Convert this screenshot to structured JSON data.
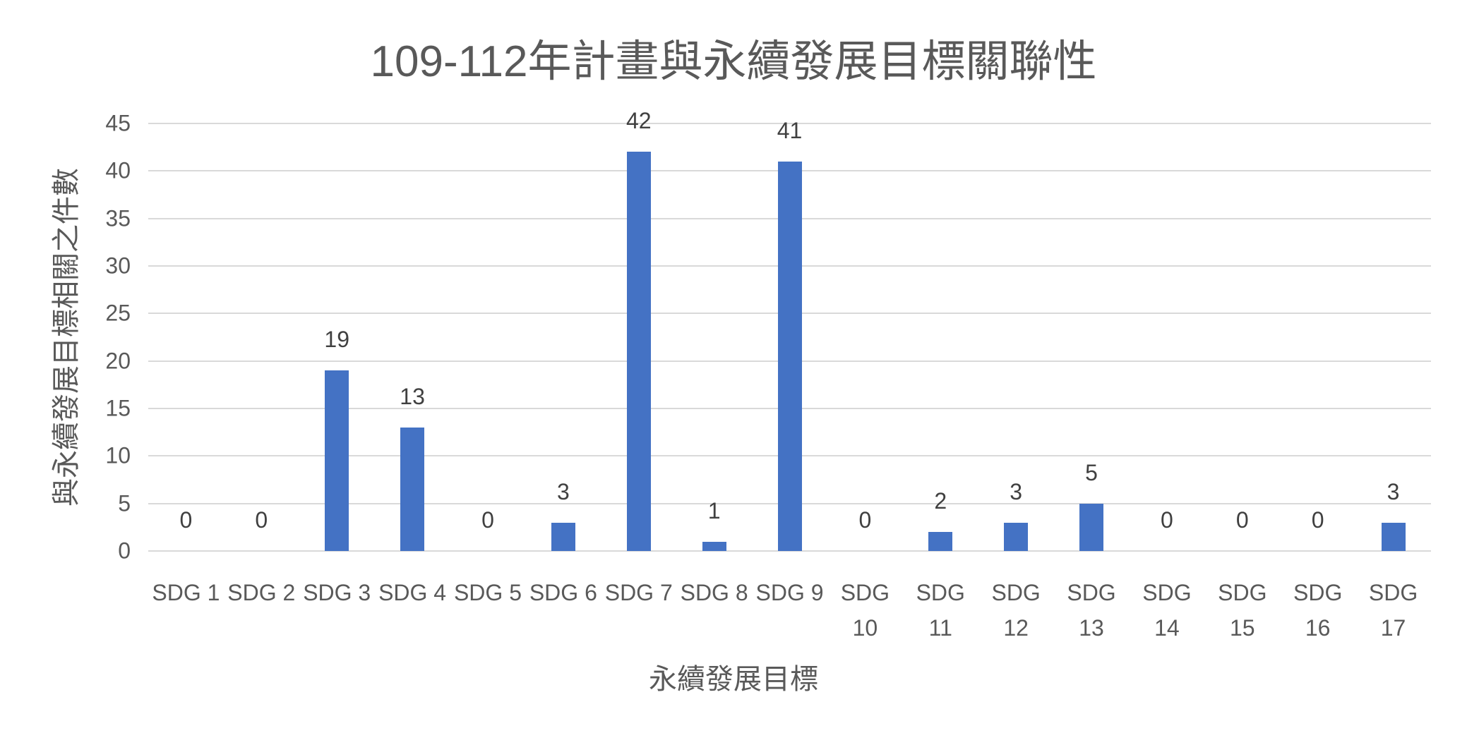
{
  "chart_data": {
    "type": "bar",
    "title": "109-112年計畫與永續發展目標關聯性",
    "xlabel": "永續發展目標",
    "ylabel": "與永續發展目標相關之件數",
    "categories": [
      "SDG 1",
      "SDG 2",
      "SDG 3",
      "SDG 4",
      "SDG 5",
      "SDG 6",
      "SDG 7",
      "SDG 8",
      "SDG 9",
      "SDG 10",
      "SDG 11",
      "SDG 12",
      "SDG 13",
      "SDG 14",
      "SDG 15",
      "SDG 16",
      "SDG 17"
    ],
    "values": [
      0,
      0,
      19,
      13,
      0,
      3,
      42,
      1,
      41,
      0,
      2,
      3,
      5,
      0,
      0,
      0,
      3
    ],
    "ylim": [
      0,
      45
    ],
    "yticks": [
      0,
      5,
      10,
      15,
      20,
      25,
      30,
      35,
      40,
      45
    ],
    "grid": true,
    "data_labels": true,
    "legend": null,
    "bar_color": "#4472C4"
  }
}
